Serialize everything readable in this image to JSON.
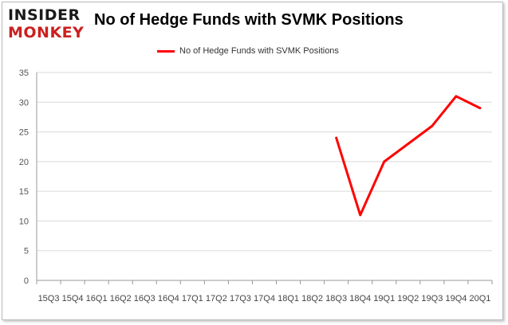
{
  "brand": {
    "line1": "INSIDER",
    "line2": "MONKEY"
  },
  "chart_data": {
    "type": "line",
    "title": "No of Hedge Funds with SVMK Positions",
    "xlabel": "",
    "ylabel": "",
    "categories": [
      "15Q3",
      "15Q4",
      "16Q1",
      "16Q2",
      "16Q3",
      "16Q4",
      "17Q1",
      "17Q2",
      "17Q3",
      "17Q4",
      "18Q1",
      "18Q2",
      "18Q3",
      "18Q4",
      "19Q1",
      "19Q2",
      "19Q3",
      "19Q4",
      "20Q1"
    ],
    "series": [
      {
        "name": "No of Hedge Funds with SVMK Positions",
        "color": "#ff0000",
        "values": [
          null,
          null,
          null,
          null,
          null,
          null,
          null,
          null,
          null,
          null,
          null,
          null,
          24,
          11,
          20,
          23,
          26,
          31,
          29
        ]
      }
    ],
    "ylim": [
      0,
      35
    ],
    "yticks": [
      0,
      5,
      10,
      15,
      20,
      25,
      30,
      35
    ],
    "grid": true,
    "legend": "top-center"
  }
}
